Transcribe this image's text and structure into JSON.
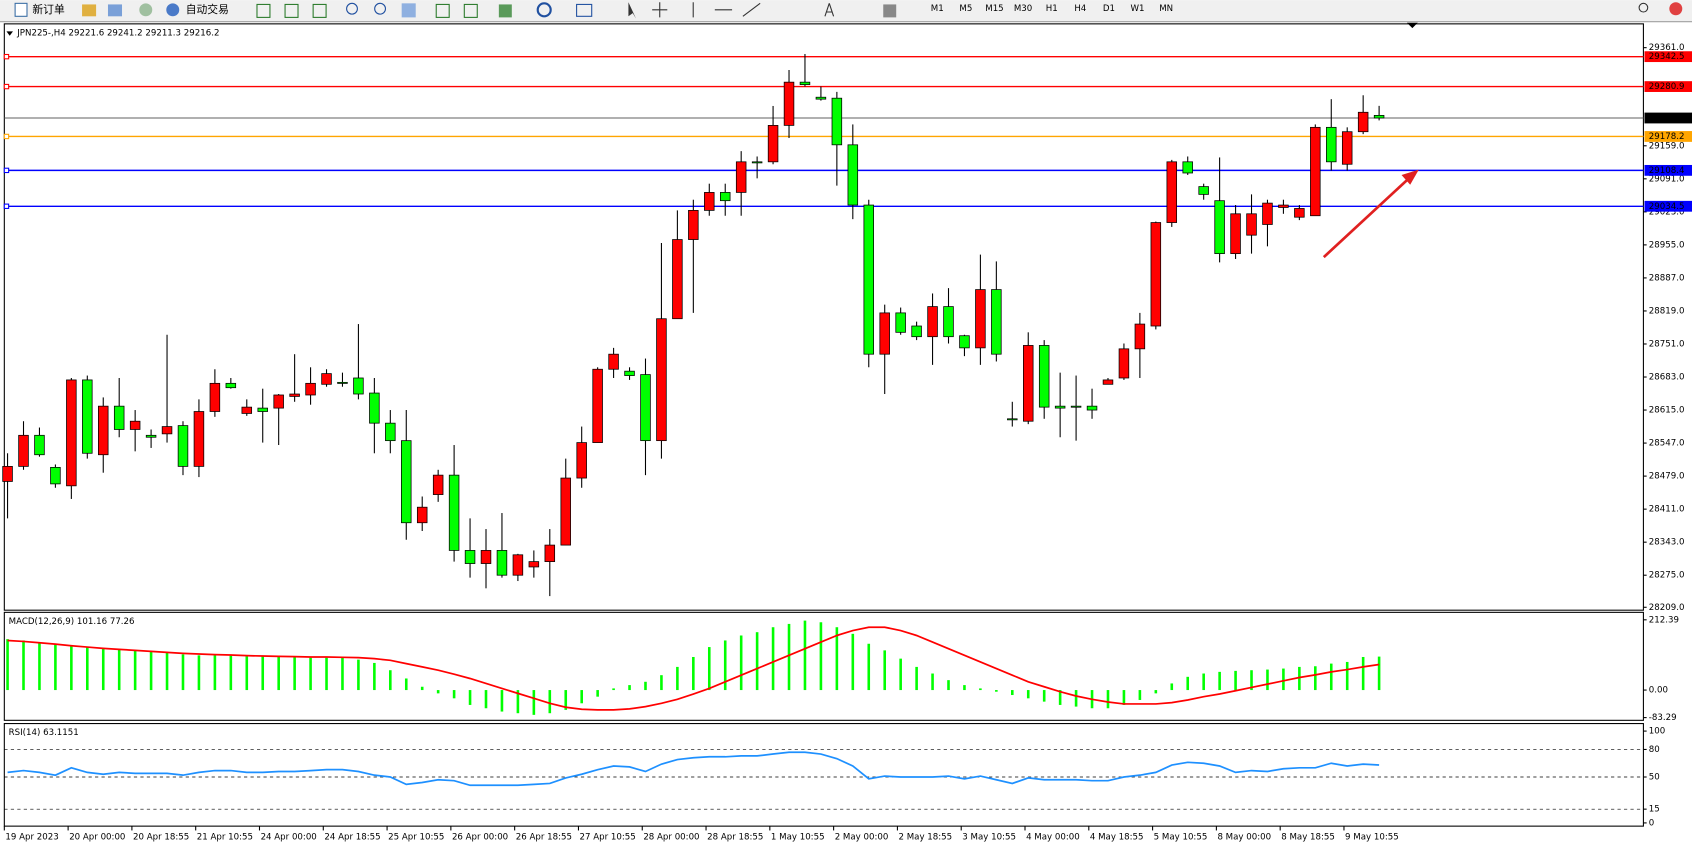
{
  "toolbar": {
    "new_order": "新订单",
    "auto_trading": "自动交易",
    "timeframes": [
      "M1",
      "M5",
      "M15",
      "M30",
      "H1",
      "H4",
      "D1",
      "W1",
      "MN"
    ]
  },
  "chart_data": [
    {
      "type": "candlestick",
      "title": "JPN225-,H4",
      "up_color": "#ff0000",
      "down_color": "#00ff00",
      "categories": [
        "19 Apr 2023",
        null,
        null,
        null,
        "20 Apr 00:00",
        null,
        null,
        null,
        "20 Apr 18:55",
        null,
        null,
        null,
        "21 Apr 10:55",
        null,
        null,
        null,
        "24 Apr 00:00",
        null,
        null,
        null,
        "24 Apr 18:55",
        null,
        null,
        null,
        "25 Apr 10:55",
        null,
        null,
        null,
        "26 Apr 00:00",
        null,
        null,
        null,
        "26 Apr 18:55",
        null,
        null,
        null,
        "27 Apr 10:55",
        null,
        null,
        null,
        "28 Apr 00:00",
        null,
        null,
        null,
        "28 Apr 18:55",
        null,
        null,
        null,
        "1 May 10:55",
        null,
        null,
        null,
        "2 May 00:00",
        null,
        null,
        null,
        "2 May 18:55",
        null,
        null,
        null,
        "3 May 10:55",
        null,
        null,
        null,
        "4 May 00:00",
        null,
        null,
        null,
        "4 May 18:55",
        null,
        null,
        null,
        "5 May 10:55",
        null,
        null,
        null,
        "8 May 00:00",
        null,
        null,
        null,
        "8 May 18:55",
        null,
        null,
        null,
        "9 May 10:55",
        null,
        null
      ],
      "open": [
        28468,
        28499,
        28563,
        28497,
        28459,
        28677,
        28523,
        28623,
        28575,
        28563,
        28566,
        28583,
        28499,
        28612,
        28670,
        28608,
        28619,
        28619,
        28643,
        28646,
        28668,
        28672,
        28681,
        28650,
        28588,
        28552,
        28383,
        28441,
        28481,
        28326,
        28299,
        28326,
        28275,
        28292,
        28303,
        28337,
        28475,
        28548,
        28699,
        28695,
        28688,
        28552,
        28803,
        28966,
        29026,
        29063,
        29063,
        29126,
        29126,
        29201,
        29290,
        29259,
        29257,
        29161,
        29037,
        28730,
        28815,
        28788,
        28766,
        28828,
        28768,
        28743,
        28863,
        28597,
        28592,
        28748,
        28623,
        28623,
        28623,
        28668,
        28681,
        28741,
        28788,
        29001,
        29126,
        29075,
        29046,
        28937,
        28975,
        28997,
        29032,
        29012,
        29015,
        29197,
        29121,
        29188,
        29221.6
      ],
      "high": [
        28526,
        28592,
        28579,
        28503,
        28681,
        28686,
        28641,
        28681,
        28615,
        28575,
        28770,
        28592,
        28637,
        28699,
        28681,
        28637,
        28659,
        28648,
        28730,
        28703,
        28699,
        28692,
        28792,
        28681,
        28615,
        28615,
        28437,
        28492,
        28543,
        28392,
        28370,
        28403,
        28319,
        28326,
        28370,
        28515,
        28581,
        28703,
        28743,
        28703,
        28721,
        28959,
        29026,
        29048,
        29081,
        29081,
        29148,
        29137,
        29241,
        29315,
        29348,
        29281,
        29270,
        29203,
        29048,
        28832,
        28826,
        28797,
        28855,
        28866,
        28770,
        28935,
        28921,
        28632,
        28775,
        28759,
        28692,
        28686,
        28659,
        28681,
        28752,
        28815,
        29003,
        29130,
        29137,
        29081,
        29135,
        29037,
        29059,
        29048,
        29048,
        29037,
        29203,
        29255,
        29197,
        29263,
        29241.2
      ],
      "low": [
        28392,
        28492,
        28519,
        28455,
        28432,
        28515,
        28486,
        28559,
        28530,
        28537,
        28548,
        28481,
        28477,
        28601,
        28659,
        28603,
        28548,
        28543,
        28632,
        28626,
        28663,
        28663,
        28637,
        28526,
        28526,
        28348,
        28366,
        28426,
        28303,
        28270,
        28248,
        28270,
        28263,
        28270,
        28232,
        28337,
        28455,
        28548,
        28681,
        28677,
        28481,
        28515,
        28803,
        28815,
        29015,
        29015,
        29015,
        29092,
        29121,
        29175,
        29281,
        29252,
        29077,
        29008,
        28703,
        28648,
        28770,
        28759,
        28708,
        28752,
        28726,
        28708,
        28715,
        28581,
        28586,
        28597,
        28559,
        28552,
        28597,
        28668,
        28677,
        28681,
        28781,
        28992,
        29099,
        29048,
        28919,
        28926,
        28937,
        28952,
        29019,
        29006,
        29015,
        29108,
        29108,
        29183,
        29211.3
      ],
      "close": [
        28499,
        28563,
        28523,
        28463,
        28677,
        28526,
        28623,
        28575,
        28592,
        28559,
        28581,
        28499,
        28612,
        28670,
        28661,
        28621,
        28612,
        28646,
        28648,
        28670,
        28690,
        28670,
        28648,
        28588,
        28552,
        28383,
        28415,
        28481,
        28326,
        28299,
        28326,
        28275,
        28317,
        28303,
        28337,
        28475,
        28548,
        28699,
        28730,
        28686,
        28552,
        28803,
        28966,
        29026,
        29063,
        29046,
        29126,
        29124,
        29201,
        29290,
        29285,
        29255,
        29161,
        29037,
        28730,
        28815,
        28775,
        28766,
        28828,
        28766,
        28743,
        28863,
        28730,
        28595,
        28748,
        28621,
        28619,
        28621,
        28615,
        28677,
        28741,
        28792,
        29001,
        29126,
        29103,
        29059,
        28937,
        29019,
        29019,
        29041,
        29037,
        29030,
        29197,
        29126,
        29188,
        29228,
        29216.2
      ],
      "ylim": [
        28203,
        29410
      ],
      "yticks": [
        {
          "value": 29361,
          "label": "29361.0"
        },
        {
          "value": 29159,
          "label": "29159.0"
        },
        {
          "value": 29091,
          "label": "29091.0"
        },
        {
          "value": 29023,
          "label": "29023.0"
        },
        {
          "value": 28955,
          "label": "28955.0"
        },
        {
          "value": 28887,
          "label": "28887.0"
        },
        {
          "value": 28819,
          "label": "28819.0"
        },
        {
          "value": 28751,
          "label": "28751.0"
        },
        {
          "value": 28683,
          "label": "28683.0"
        },
        {
          "value": 28615,
          "label": "28615.0"
        },
        {
          "value": 28547,
          "label": "28547.0"
        },
        {
          "value": 28479,
          "label": "28479.0"
        },
        {
          "value": 28411,
          "label": "28411.0"
        },
        {
          "value": 28343,
          "label": "28343.0"
        },
        {
          "value": 28275,
          "label": "28275.0"
        },
        {
          "value": 28209,
          "label": "28209.0"
        }
      ],
      "levels": [
        {
          "value": 29342.5,
          "color": "#ff0000"
        },
        {
          "value": 29280.9,
          "color": "#ff0000"
        },
        {
          "value": 29178.2,
          "color": "#ffa500"
        },
        {
          "value": 29108.4,
          "color": "#0000ff"
        },
        {
          "value": 29034.5,
          "color": "#0000ff"
        }
      ]
    },
    {
      "type": "macd",
      "title": "MACD(12,26,9)",
      "ylim": [
        -91.5,
        235
      ],
      "yticks": [
        {
          "value": 212.39,
          "label": "212.39"
        },
        {
          "value": 0,
          "label": "0.00"
        },
        {
          "value": -83.29,
          "label": "-83.29"
        }
      ],
      "series": [
        {
          "type": "bar",
          "color": "#00ff00",
          "values": [
            154,
            150,
            144,
            140,
            134,
            130,
            127,
            124,
            120,
            118,
            114,
            108,
            105,
            105,
            104,
            102,
            102,
            100,
            100,
            98,
            98,
            98,
            92,
            82,
            60,
            35,
            10,
            -10,
            -25,
            -45,
            -55,
            -65,
            -70,
            -75,
            -70,
            -60,
            -40,
            -20,
            5,
            15,
            25,
            45,
            70,
            100,
            130,
            150,
            165,
            175,
            190,
            200,
            210,
            205,
            190,
            170,
            140,
            120,
            95,
            70,
            50,
            30,
            15,
            5,
            -5,
            -15,
            -25,
            -35,
            -45,
            -50,
            -55,
            -55,
            -45,
            -30,
            -10,
            20,
            40,
            50,
            55,
            58,
            60,
            62,
            65,
            70,
            72,
            80,
            85,
            100,
            101.16
          ]
        },
        {
          "type": "line",
          "color": "#ff0000",
          "values": [
            150,
            147,
            143,
            139,
            134,
            130,
            126,
            123,
            120,
            117,
            114,
            111,
            109,
            107,
            106,
            104,
            103,
            102,
            101,
            100,
            100,
            99,
            98,
            95,
            90,
            80,
            70,
            60,
            48,
            35,
            20,
            5,
            -10,
            -25,
            -40,
            -52,
            -58,
            -60,
            -60,
            -57,
            -50,
            -40,
            -28,
            -12,
            5,
            25,
            45,
            65,
            85,
            105,
            125,
            145,
            165,
            180,
            190,
            190,
            180,
            165,
            145,
            125,
            105,
            85,
            65,
            45,
            25,
            10,
            -5,
            -18,
            -28,
            -36,
            -42,
            -42,
            -42,
            -38,
            -30,
            -20,
            -12,
            -2,
            8,
            18,
            28,
            38,
            46,
            55,
            62,
            70,
            77.26
          ]
        }
      ]
    },
    {
      "type": "rsi",
      "title": "RSI(14)",
      "ylim": [
        -3.5,
        108.2
      ],
      "yticks": [
        100,
        80,
        50,
        15,
        0
      ],
      "levels": [
        80,
        50,
        15
      ],
      "series": [
        {
          "type": "line",
          "color": "#1e90ff",
          "values": [
            55,
            57,
            55,
            52,
            60,
            55,
            53,
            55,
            54,
            54,
            54,
            52,
            55,
            57,
            57,
            55,
            55,
            56,
            56,
            57,
            58,
            58,
            56,
            52,
            50,
            42,
            44,
            47,
            46,
            41,
            41,
            41,
            41,
            42,
            43,
            49,
            53,
            58,
            62,
            61,
            56,
            64,
            69,
            71,
            72,
            72,
            73,
            73,
            75,
            77,
            77,
            75,
            70,
            62,
            48,
            51,
            50,
            50,
            50,
            51,
            48,
            51,
            47,
            43,
            49,
            47,
            47,
            47,
            46,
            46,
            50,
            52,
            55,
            63,
            66,
            65,
            62,
            55,
            57,
            56,
            59,
            60,
            60,
            65,
            62,
            64,
            63.1151
          ]
        }
      ]
    }
  ]
}
